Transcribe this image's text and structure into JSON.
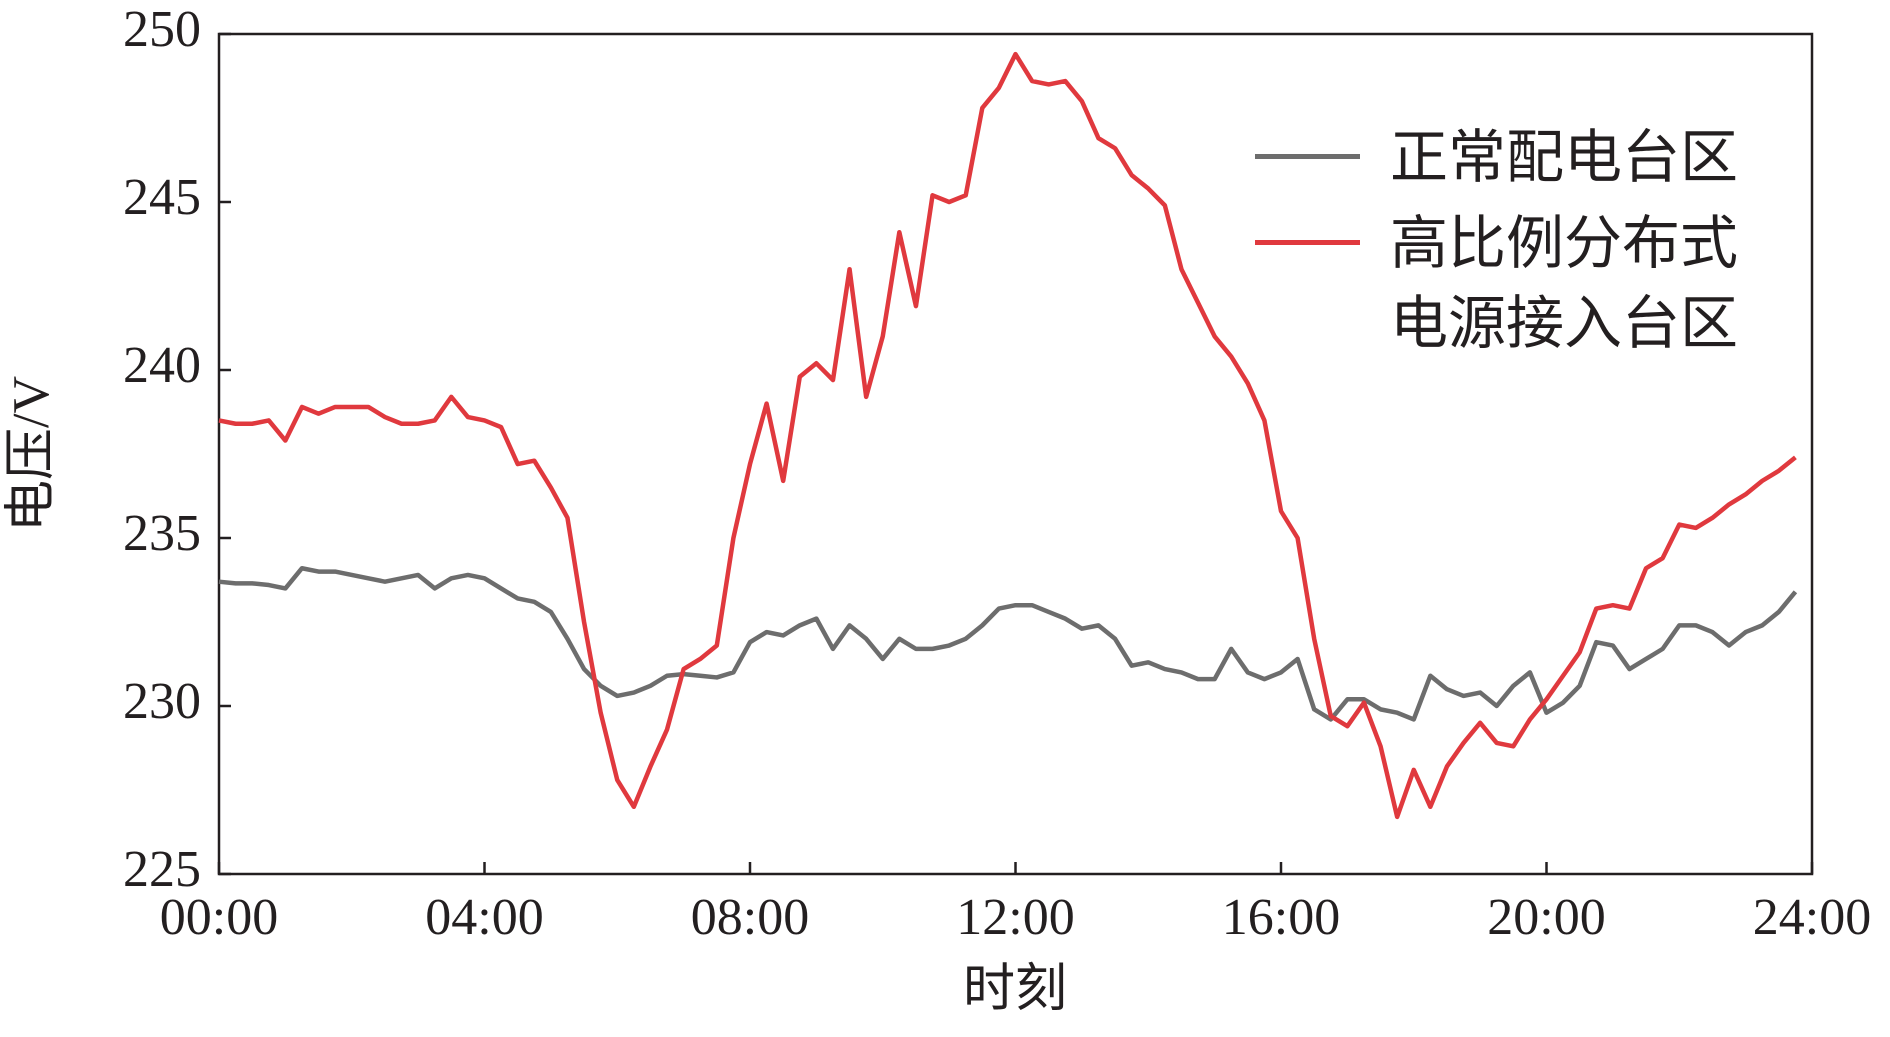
{
  "chart_data": {
    "type": "line",
    "xlabel": "时刻",
    "ylabel": "电压/V",
    "x": [
      0,
      0.25,
      0.5,
      0.75,
      1,
      1.25,
      1.5,
      1.75,
      2,
      2.25,
      2.5,
      2.75,
      3,
      3.25,
      3.5,
      3.75,
      4,
      4.25,
      4.5,
      4.75,
      5,
      5.25,
      5.5,
      5.75,
      6,
      6.25,
      6.5,
      6.75,
      7,
      7.25,
      7.5,
      7.75,
      8,
      8.25,
      8.5,
      8.75,
      9,
      9.25,
      9.5,
      9.75,
      10,
      10.25,
      10.5,
      10.75,
      11,
      11.25,
      11.5,
      11.75,
      12,
      12.25,
      12.5,
      12.75,
      13,
      13.25,
      13.5,
      13.75,
      14,
      14.25,
      14.5,
      14.75,
      15,
      15.25,
      15.5,
      15.75,
      16,
      16.25,
      16.5,
      16.75,
      17,
      17.25,
      17.5,
      17.75,
      18,
      18.25,
      18.5,
      18.75,
      19,
      19.25,
      19.5,
      19.75,
      20,
      20.25,
      20.5,
      20.75,
      21,
      21.25,
      21.5,
      21.75,
      22,
      22.25,
      22.5,
      22.75,
      23,
      23.25,
      23.5,
      23.75
    ],
    "series": [
      {
        "name": "正常配电台区",
        "color": "#6d6d6d",
        "values": [
          233.7,
          233.65,
          233.65,
          233.6,
          233.5,
          234.1,
          234.0,
          234.0,
          233.9,
          233.8,
          233.7,
          233.8,
          233.9,
          233.5,
          233.8,
          233.9,
          233.8,
          233.5,
          233.2,
          233.1,
          232.8,
          232.0,
          231.1,
          230.6,
          230.3,
          230.4,
          230.6,
          230.9,
          230.95,
          230.9,
          230.85,
          231.0,
          231.9,
          232.2,
          232.1,
          232.4,
          232.6,
          231.7,
          232.4,
          232.0,
          231.4,
          232.0,
          231.7,
          231.7,
          231.8,
          232.0,
          232.4,
          232.9,
          233.0,
          233.0,
          232.8,
          232.6,
          232.3,
          232.4,
          232.0,
          231.2,
          231.3,
          231.1,
          231.0,
          230.8,
          230.8,
          231.7,
          231.0,
          230.8,
          231.0,
          231.4,
          229.9,
          229.6,
          230.2,
          230.2,
          229.9,
          229.8,
          229.6,
          230.9,
          230.5,
          230.3,
          230.4,
          230.0,
          230.6,
          231.0,
          229.8,
          230.1,
          230.6,
          231.9,
          231.8,
          231.1,
          231.4,
          231.7,
          232.4,
          232.4,
          232.2,
          231.8,
          232.2,
          232.4,
          232.8,
          233.4
        ]
      },
      {
        "name": "高比例分布式电源接入台区",
        "color": "#e0393e",
        "values": [
          238.5,
          238.4,
          238.4,
          238.5,
          237.9,
          238.9,
          238.7,
          238.9,
          238.9,
          238.9,
          238.6,
          238.4,
          238.4,
          238.5,
          239.2,
          238.6,
          238.5,
          238.3,
          237.2,
          237.3,
          236.5,
          235.6,
          232.5,
          229.8,
          227.8,
          227.0,
          228.2,
          229.3,
          231.1,
          231.4,
          231.8,
          235.0,
          237.2,
          239.0,
          236.7,
          239.8,
          240.2,
          239.7,
          243.0,
          239.2,
          241.0,
          244.1,
          241.9,
          245.2,
          245.0,
          245.2,
          247.8,
          248.4,
          249.4,
          248.6,
          248.5,
          248.6,
          248.0,
          246.9,
          246.6,
          245.8,
          245.4,
          244.9,
          243.0,
          242.0,
          241.0,
          240.4,
          239.6,
          238.5,
          235.8,
          235.0,
          232.0,
          229.7,
          229.4,
          230.1,
          228.8,
          226.7,
          228.1,
          227.0,
          228.2,
          228.9,
          229.5,
          228.9,
          228.8,
          229.6,
          230.2,
          230.9,
          231.6,
          232.9,
          233.0,
          232.9,
          234.1,
          234.4,
          235.4,
          235.3,
          235.6,
          236.0,
          236.3,
          236.7,
          237.0,
          237.4
        ]
      }
    ],
    "xlim": [
      0,
      24
    ],
    "xticks": [
      {
        "value": 0,
        "label": "00:00"
      },
      {
        "value": 4,
        "label": "04:00"
      },
      {
        "value": 8,
        "label": "08:00"
      },
      {
        "value": 12,
        "label": "12:00"
      },
      {
        "value": 16,
        "label": "16:00"
      },
      {
        "value": 20,
        "label": "20:00"
      },
      {
        "value": 24,
        "label": "24:00"
      }
    ],
    "ylim": [
      225,
      250
    ],
    "yticks": [
      225,
      230,
      235,
      240,
      245,
      250
    ],
    "grid": false,
    "legend": "upper right"
  }
}
